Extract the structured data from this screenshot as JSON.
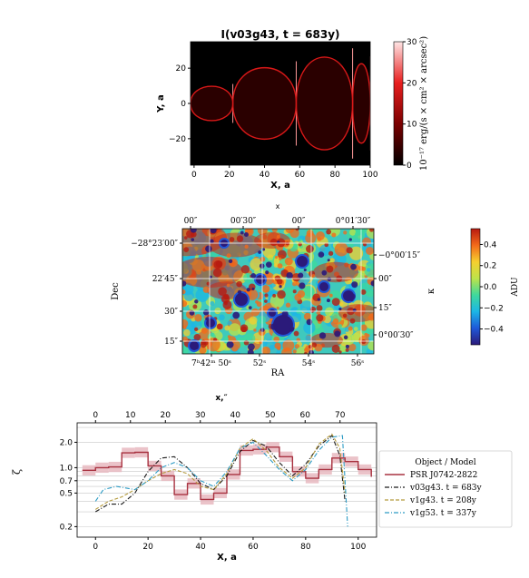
{
  "chart_data": [
    {
      "type": "heatmap",
      "title": "I(v03g43, t = 683y)",
      "xlabel": "X, a",
      "ylabel": "Y, a",
      "x_ticks": [
        "0",
        "20",
        "40",
        "60",
        "80",
        "100"
      ],
      "y_ticks": [
        "20",
        "0",
        "−20"
      ],
      "xlim": [
        -2,
        100
      ],
      "ylim": [
        -35,
        35
      ],
      "colorbar": {
        "label": "10⁻¹⁷ erg/(s × cm² × arcsec²)",
        "ticks": [
          "30",
          "20",
          "10",
          "0"
        ],
        "range": [
          0,
          30
        ],
        "colors": [
          "#000000",
          "#7a0000",
          "#e81e1e",
          "#ffe6e6"
        ]
      },
      "shells": [
        {
          "x_start": -2,
          "x_end": 22,
          "half_height": 12
        },
        {
          "x_start": 22,
          "x_end": 58,
          "half_height": 26
        },
        {
          "x_start": 58,
          "x_end": 90,
          "half_height": 34
        },
        {
          "x_start": 90,
          "x_end": 100,
          "half_height": 29
        }
      ]
    },
    {
      "type": "heatmap",
      "xlabel": "RA",
      "ylabel": "Dec",
      "top_axis_label": "x",
      "right_axis_label": "κ",
      "top_ticks": [
        "00″",
        "00′30″",
        "00″",
        "0°01′30″"
      ],
      "bottom_ticks": [
        "7ʰ42ᵐ 50ˢ",
        "52ˢ",
        "54ˢ",
        "56ˢ"
      ],
      "left_ticks": [
        "−28°23′00″",
        "22′45″",
        "30″",
        "15″"
      ],
      "right_ticks": [
        "−0°00′15″",
        "00″",
        "15″",
        "0°00′30″"
      ],
      "colorbar": {
        "label": "ADU",
        "ticks": [
          "0.4",
          "0.2",
          "0.0",
          "−0.2",
          "−0.4"
        ],
        "range": [
          -0.55,
          0.55
        ],
        "colors": [
          "#2b1a7a",
          "#1f58d8",
          "#1cb6e6",
          "#3fd99c",
          "#bde34a",
          "#f6cf2f",
          "#f36a1a",
          "#b81a10"
        ]
      }
    },
    {
      "type": "line",
      "xlabel": "X, a",
      "ylabel": "ζ",
      "top_axis_label": "x,″",
      "xlim": [
        -7,
        107
      ],
      "ylim": [
        0.15,
        3.4
      ],
      "y_scale": "log",
      "x_ticks": [
        0,
        20,
        40,
        60,
        80,
        100
      ],
      "top_ticks": [
        0,
        10,
        20,
        30,
        40,
        50,
        60,
        70
      ],
      "y_ticks": [
        0.2,
        0.5,
        0.7,
        1.0,
        2.0
      ],
      "legend": {
        "title": "Object / Model",
        "placement": "center-right outside"
      },
      "series": [
        {
          "name": "PSR J0742-2822",
          "style": "step",
          "color": "#a83240",
          "x": [
            -5,
            0,
            5,
            10,
            15,
            20,
            25,
            30,
            35,
            40,
            45,
            50,
            55,
            60,
            65,
            70,
            75,
            80,
            85,
            90,
            95,
            100,
            105
          ],
          "y": [
            0.93,
            1.0,
            1.02,
            1.5,
            1.52,
            1.05,
            0.8,
            0.48,
            0.65,
            0.42,
            0.5,
            0.83,
            1.6,
            1.65,
            1.75,
            1.35,
            0.9,
            0.75,
            0.95,
            1.3,
            1.18,
            0.95,
            0.78
          ]
        },
        {
          "name": "v03g43. t = 683y",
          "style": "dashdot",
          "color": "#1a1a1a",
          "x": [
            0,
            5,
            10,
            15,
            20,
            25,
            30,
            35,
            40,
            45,
            50,
            55,
            60,
            65,
            70,
            75,
            80,
            85,
            90,
            93,
            95
          ],
          "y": [
            0.3,
            0.37,
            0.37,
            0.5,
            0.9,
            1.3,
            1.35,
            1.0,
            0.65,
            0.55,
            0.8,
            1.55,
            2.1,
            1.8,
            1.15,
            0.8,
            1.1,
            1.8,
            2.4,
            1.4,
            0.4
          ]
        },
        {
          "name": "v1g43. t = 208y",
          "style": "dashed",
          "color": "#b49a3c",
          "x": [
            0,
            5,
            10,
            15,
            20,
            25,
            30,
            35,
            40,
            45,
            50,
            55,
            60,
            65,
            70,
            75,
            80,
            85,
            90,
            93,
            95
          ],
          "y": [
            0.32,
            0.4,
            0.45,
            0.55,
            0.7,
            0.85,
            0.95,
            0.85,
            0.6,
            0.55,
            0.85,
            1.7,
            2.2,
            1.6,
            1.0,
            0.75,
            1.0,
            1.9,
            2.5,
            1.7,
            0.5
          ]
        },
        {
          "name": "v1g53. t = 337y",
          "style": "dashdot",
          "color": "#2c9bc4",
          "x": [
            0,
            3,
            8,
            15,
            20,
            25,
            30,
            35,
            40,
            45,
            50,
            55,
            60,
            65,
            70,
            75,
            80,
            85,
            90,
            94,
            96
          ],
          "y": [
            0.4,
            0.55,
            0.6,
            0.55,
            0.7,
            1.0,
            1.15,
            1.0,
            0.7,
            0.6,
            0.9,
            1.7,
            2.0,
            1.4,
            0.95,
            0.7,
            0.95,
            1.6,
            2.3,
            2.4,
            0.2
          ]
        }
      ]
    }
  ]
}
